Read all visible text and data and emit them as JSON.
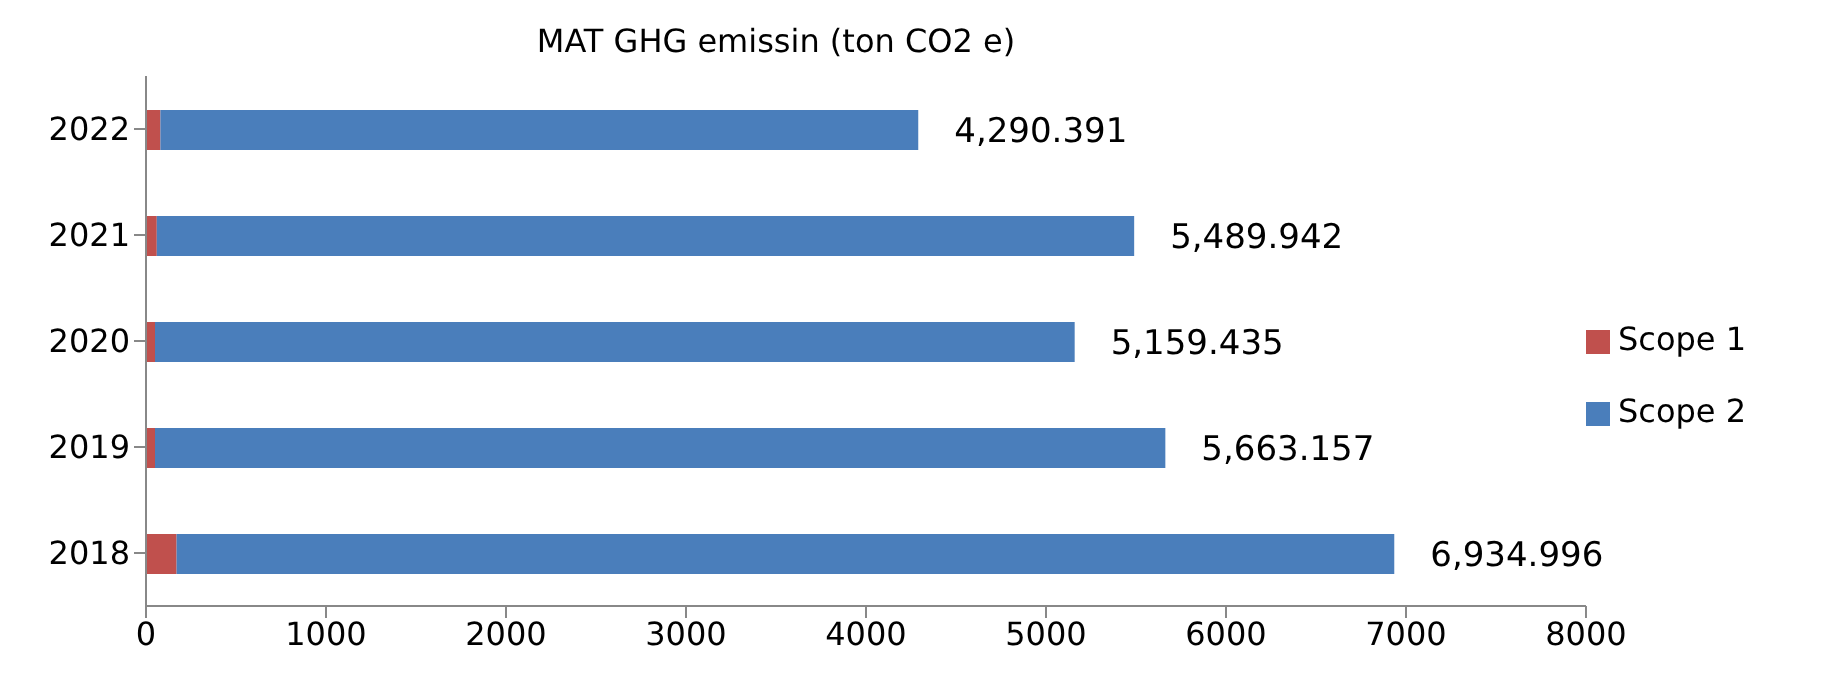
{
  "chart_data": {
    "type": "bar",
    "title": "MAT GHG emissin (ton CO2 e)",
    "orientation": "horizontal",
    "stacked": true,
    "categories": [
      "2022",
      "2021",
      "2020",
      "2019",
      "2018"
    ],
    "series": [
      {
        "name": "Scope 1",
        "color": "#c0504d",
        "values": [
          80,
          60,
          50,
          50,
          170
        ]
      },
      {
        "name": "Scope 2",
        "color": "#4a7ebb",
        "values": [
          4210.391,
          5429.942,
          5109.435,
          5613.157,
          6764.996
        ]
      }
    ],
    "totals": [
      "4,290.391",
      "5,489.942",
      "5,159.435",
      "5,663.157",
      "6,934.996"
    ],
    "xlim": [
      0,
      8000
    ],
    "xticks": [
      0,
      1000,
      2000,
      3000,
      4000,
      5000,
      6000,
      7000,
      8000
    ],
    "legend": "right"
  }
}
